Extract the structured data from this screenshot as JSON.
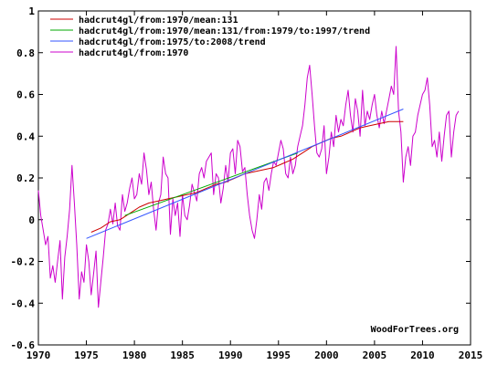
{
  "chart_data": {
    "type": "line",
    "title": "",
    "xlabel": "",
    "ylabel": "",
    "xlim": [
      1970,
      2015
    ],
    "ylim": [
      -0.6,
      1
    ],
    "x_ticks": [
      1970,
      1975,
      1980,
      1985,
      1990,
      1995,
      2000,
      2005,
      2010,
      2015
    ],
    "x_tick_labels": [
      "1970",
      "1975",
      "1980",
      "1985",
      "1990",
      "1995",
      "2000",
      "2005",
      "2010",
      "2015"
    ],
    "y_ticks": [
      -0.6,
      -0.4,
      -0.2,
      0,
      0.2,
      0.4,
      0.6,
      0.8,
      1
    ],
    "y_tick_labels": [
      "-0.6",
      "-0.4",
      "-0.2",
      "0",
      "0.2",
      "0.4",
      "0.6",
      "0.8",
      "1"
    ],
    "grid": false,
    "legend_position": "top-left",
    "credit": "WoodForTrees.org",
    "series": [
      {
        "name": "hadcrut4gl/from:1970/mean:131",
        "color": "#cc0000",
        "x": [
          1975.5,
          1976.5,
          1977.5,
          1978.5,
          1979.5,
          1980.5,
          1981.5,
          1982.5,
          1983.5,
          1984.5,
          1985.5,
          1986.5,
          1987.5,
          1988.5,
          1989.5,
          1990.5,
          1991.5,
          1992.5,
          1993.5,
          1994.5,
          1995.5,
          1996.5,
          1997.5,
          1998.5,
          1999.5,
          2000.5,
          2001.5,
          2002.5,
          2003.5,
          2004.5,
          2005.5,
          2006.5,
          2007.5,
          2008.0
        ],
        "y": [
          -0.06,
          -0.04,
          -0.01,
          0.0,
          0.03,
          0.06,
          0.08,
          0.09,
          0.1,
          0.11,
          0.12,
          0.13,
          0.15,
          0.17,
          0.18,
          0.2,
          0.22,
          0.23,
          0.24,
          0.25,
          0.27,
          0.29,
          0.32,
          0.35,
          0.37,
          0.39,
          0.4,
          0.42,
          0.44,
          0.45,
          0.46,
          0.47,
          0.47,
          0.47
        ]
      },
      {
        "name": "hadcrut4gl/from:1970/mean:131/from:1979/to:1997/trend",
        "color": "#00aa00",
        "x": [
          1979,
          1997
        ],
        "y": [
          0.02,
          0.32
        ]
      },
      {
        "name": "hadcrut4gl/from:1975/to:2008/trend",
        "color": "#3355ff",
        "x": [
          1975,
          2008
        ],
        "y": [
          -0.09,
          0.53
        ]
      },
      {
        "name": "hadcrut4gl/from:1970",
        "color": "#cc00cc",
        "x": [
          1970.0,
          1970.25,
          1970.5,
          1970.75,
          1971.0,
          1971.25,
          1971.5,
          1971.75,
          1972.0,
          1972.25,
          1972.5,
          1972.75,
          1973.0,
          1973.25,
          1973.5,
          1973.75,
          1974.0,
          1974.25,
          1974.5,
          1974.75,
          1975.0,
          1975.25,
          1975.5,
          1975.75,
          1976.0,
          1976.25,
          1976.5,
          1976.75,
          1977.0,
          1977.25,
          1977.5,
          1977.75,
          1978.0,
          1978.25,
          1978.5,
          1978.75,
          1979.0,
          1979.25,
          1979.5,
          1979.75,
          1980.0,
          1980.25,
          1980.5,
          1980.75,
          1981.0,
          1981.25,
          1981.5,
          1981.75,
          1982.0,
          1982.25,
          1982.5,
          1982.75,
          1983.0,
          1983.25,
          1983.5,
          1983.75,
          1984.0,
          1984.25,
          1984.5,
          1984.75,
          1985.0,
          1985.25,
          1985.5,
          1985.75,
          1986.0,
          1986.25,
          1986.5,
          1986.75,
          1987.0,
          1987.25,
          1987.5,
          1987.75,
          1988.0,
          1988.25,
          1988.5,
          1988.75,
          1989.0,
          1989.25,
          1989.5,
          1989.75,
          1990.0,
          1990.25,
          1990.5,
          1990.75,
          1991.0,
          1991.25,
          1991.5,
          1991.75,
          1992.0,
          1992.25,
          1992.5,
          1992.75,
          1993.0,
          1993.25,
          1993.5,
          1993.75,
          1994.0,
          1994.25,
          1994.5,
          1994.75,
          1995.0,
          1995.25,
          1995.5,
          1995.75,
          1996.0,
          1996.25,
          1996.5,
          1996.75,
          1997.0,
          1997.25,
          1997.5,
          1997.75,
          1998.0,
          1998.25,
          1998.5,
          1998.75,
          1999.0,
          1999.25,
          1999.5,
          1999.75,
          2000.0,
          2000.25,
          2000.5,
          2000.75,
          2001.0,
          2001.25,
          2001.5,
          2001.75,
          2002.0,
          2002.25,
          2002.5,
          2002.75,
          2003.0,
          2003.25,
          2003.5,
          2003.75,
          2004.0,
          2004.25,
          2004.5,
          2004.75,
          2005.0,
          2005.25,
          2005.5,
          2005.75,
          2006.0,
          2006.25,
          2006.5,
          2006.75,
          2007.0,
          2007.25,
          2007.5,
          2007.75,
          2008.0,
          2008.25,
          2008.5,
          2008.75,
          2009.0,
          2009.25,
          2009.5,
          2009.75,
          2010.0,
          2010.25,
          2010.5,
          2010.75,
          2011.0,
          2011.25,
          2011.5,
          2011.75,
          2012.0,
          2012.25,
          2012.5,
          2012.75,
          2013.0,
          2013.25,
          2013.5,
          2013.75
        ],
        "y": [
          0.14,
          0.02,
          -0.05,
          -0.12,
          -0.08,
          -0.28,
          -0.22,
          -0.3,
          -0.2,
          -0.1,
          -0.38,
          -0.18,
          -0.08,
          0.05,
          0.26,
          0.08,
          -0.12,
          -0.38,
          -0.25,
          -0.3,
          -0.12,
          -0.2,
          -0.36,
          -0.26,
          -0.15,
          -0.42,
          -0.3,
          -0.18,
          -0.05,
          -0.02,
          0.05,
          -0.02,
          0.08,
          -0.03,
          -0.05,
          0.12,
          0.04,
          0.08,
          0.15,
          0.2,
          0.1,
          0.12,
          0.22,
          0.17,
          0.32,
          0.24,
          0.12,
          0.18,
          0.05,
          -0.05,
          0.08,
          0.12,
          0.3,
          0.22,
          0.2,
          -0.07,
          0.1,
          0.02,
          0.08,
          -0.08,
          0.12,
          0.02,
          0.0,
          0.07,
          0.17,
          0.13,
          0.09,
          0.22,
          0.25,
          0.2,
          0.28,
          0.3,
          0.32,
          0.12,
          0.22,
          0.2,
          0.08,
          0.15,
          0.26,
          0.18,
          0.32,
          0.34,
          0.22,
          0.38,
          0.35,
          0.23,
          0.25,
          0.12,
          0.02,
          -0.05,
          -0.09,
          0.0,
          0.12,
          0.05,
          0.18,
          0.2,
          0.14,
          0.22,
          0.28,
          0.26,
          0.32,
          0.38,
          0.34,
          0.22,
          0.2,
          0.3,
          0.22,
          0.26,
          0.35,
          0.4,
          0.45,
          0.55,
          0.68,
          0.74,
          0.6,
          0.45,
          0.32,
          0.3,
          0.34,
          0.45,
          0.22,
          0.3,
          0.42,
          0.35,
          0.5,
          0.42,
          0.48,
          0.45,
          0.55,
          0.62,
          0.5,
          0.42,
          0.58,
          0.52,
          0.4,
          0.62,
          0.45,
          0.52,
          0.48,
          0.55,
          0.6,
          0.5,
          0.44,
          0.52,
          0.46,
          0.52,
          0.58,
          0.64,
          0.6,
          0.83,
          0.52,
          0.42,
          0.18,
          0.3,
          0.35,
          0.26,
          0.4,
          0.42,
          0.5,
          0.55,
          0.6,
          0.62,
          0.68,
          0.55,
          0.35,
          0.38,
          0.3,
          0.42,
          0.28,
          0.4,
          0.5,
          0.52,
          0.3,
          0.42,
          0.5,
          0.52
        ]
      }
    ]
  }
}
